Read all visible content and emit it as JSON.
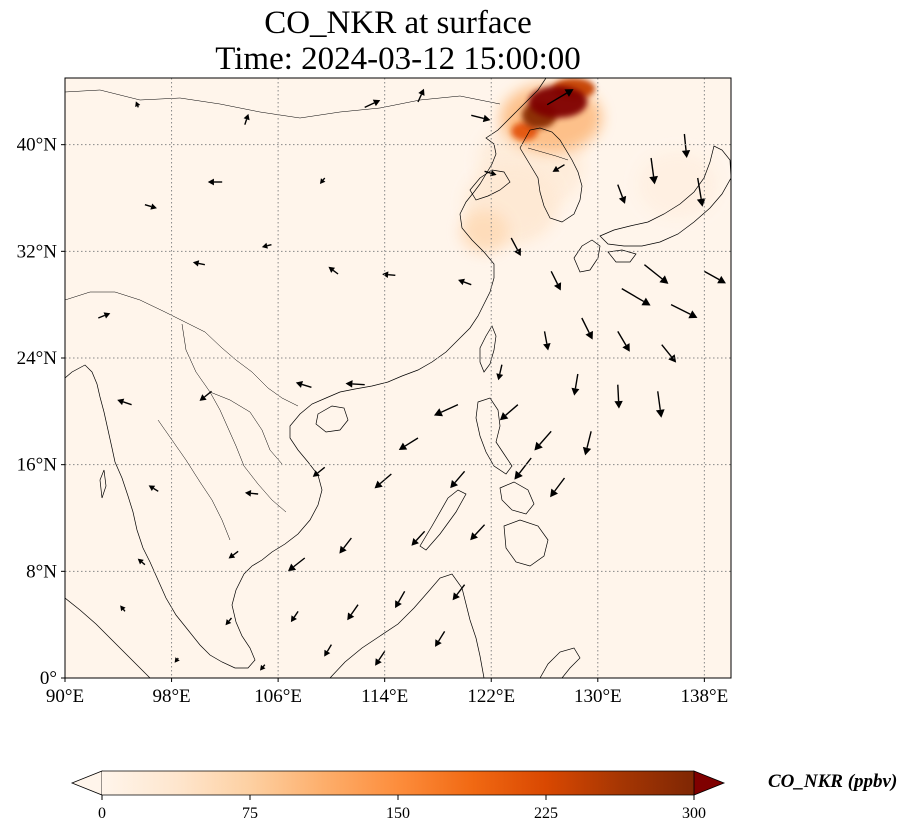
{
  "title": {
    "line1": "CO_NKR at surface",
    "line2": "Time: 2024-03-12 15:00:00"
  },
  "map": {
    "variable": "CO_NKR",
    "level": "surface",
    "lon_range": [
      90,
      140
    ],
    "lat_range": [
      0,
      45
    ],
    "lon_ticks": [
      {
        "value": 90,
        "label": "90°E"
      },
      {
        "value": 98,
        "label": "98°E"
      },
      {
        "value": 106,
        "label": "106°E"
      },
      {
        "value": 114,
        "label": "114°E"
      },
      {
        "value": 122,
        "label": "122°E"
      },
      {
        "value": 130,
        "label": "130°E"
      },
      {
        "value": 138,
        "label": "138°E"
      }
    ],
    "lat_ticks": [
      {
        "value": 0,
        "label": "0°"
      },
      {
        "value": 8,
        "label": "8°N"
      },
      {
        "value": 16,
        "label": "16°N"
      },
      {
        "value": 24,
        "label": "24°N"
      },
      {
        "value": 32,
        "label": "32°N"
      },
      {
        "value": 40,
        "label": "40°N"
      }
    ],
    "gridlines": true,
    "background_color": "#fff5eb",
    "coastline_color": "#000000",
    "plumes": [
      {
        "lon": 127.0,
        "lat": 43.2,
        "rx": 2.2,
        "ry": 1.2,
        "value": 300
      },
      {
        "lon": 125.6,
        "lat": 42.2,
        "rx": 1.3,
        "ry": 1.0,
        "value": 290
      },
      {
        "lon": 128.2,
        "lat": 44.2,
        "rx": 1.6,
        "ry": 0.8,
        "value": 240
      },
      {
        "lon": 124.5,
        "lat": 41.0,
        "rx": 1.0,
        "ry": 0.7,
        "value": 210
      },
      {
        "lon": 126.5,
        "lat": 42.0,
        "rx": 3.8,
        "ry": 2.6,
        "value": 95
      },
      {
        "lon": 121.5,
        "lat": 33.5,
        "rx": 1.8,
        "ry": 1.6,
        "value": 55
      },
      {
        "lon": 123.5,
        "lat": 35.5,
        "rx": 3.5,
        "ry": 3.0,
        "value": 30
      },
      {
        "lon": 125.0,
        "lat": 38.5,
        "rx": 4.0,
        "ry": 3.5,
        "value": 22
      },
      {
        "lon": 136.0,
        "lat": 37.0,
        "rx": 3.0,
        "ry": 2.5,
        "value": 12
      }
    ],
    "wind_vectors": [
      [
        126.2,
        43.0,
        2.2,
        1.3
      ],
      [
        120.5,
        42.2,
        1.6,
        -0.4
      ],
      [
        112.5,
        42.8,
        1.3,
        0.6
      ],
      [
        116.5,
        43.2,
        0.5,
        1.1
      ],
      [
        103.5,
        41.5,
        0.3,
        0.9
      ],
      [
        95.5,
        42.8,
        -0.2,
        0.5
      ],
      [
        136.5,
        40.8,
        0.2,
        -2.0
      ],
      [
        134.0,
        39.0,
        0.3,
        -2.2
      ],
      [
        137.5,
        37.5,
        0.4,
        -2.4
      ],
      [
        131.5,
        37.0,
        0.6,
        -1.6
      ],
      [
        127.5,
        38.5,
        -1.0,
        -0.6
      ],
      [
        121.5,
        38.0,
        1.0,
        -0.3
      ],
      [
        109.5,
        37.5,
        -0.4,
        -0.5
      ],
      [
        101.8,
        37.2,
        -1.2,
        0.0
      ],
      [
        96.0,
        35.5,
        1.0,
        -0.3
      ],
      [
        133.5,
        31.0,
        2.0,
        -1.6
      ],
      [
        138.0,
        30.5,
        1.8,
        -1.0
      ],
      [
        131.8,
        29.2,
        2.4,
        -1.4
      ],
      [
        135.5,
        28.0,
        2.2,
        -1.1
      ],
      [
        126.5,
        30.5,
        0.8,
        -1.6
      ],
      [
        123.5,
        33.0,
        0.8,
        -1.5
      ],
      [
        120.5,
        29.5,
        -1.1,
        0.4
      ],
      [
        114.8,
        30.2,
        -1.1,
        0.1
      ],
      [
        110.5,
        30.3,
        -0.8,
        0.6
      ],
      [
        105.5,
        32.5,
        -0.8,
        -0.2
      ],
      [
        100.5,
        31.0,
        -1.0,
        0.2
      ],
      [
        92.5,
        27.0,
        1.0,
        0.4
      ],
      [
        128.8,
        27.0,
        0.9,
        -1.8
      ],
      [
        131.5,
        26.0,
        1.0,
        -1.7
      ],
      [
        134.8,
        25.0,
        1.2,
        -1.5
      ],
      [
        126.0,
        26.0,
        0.3,
        -1.6
      ],
      [
        122.8,
        23.5,
        -0.3,
        -1.3
      ],
      [
        128.5,
        22.8,
        -0.3,
        -1.8
      ],
      [
        131.5,
        22.0,
        0.1,
        -2.0
      ],
      [
        134.5,
        21.5,
        0.3,
        -2.2
      ],
      [
        124.0,
        20.5,
        -1.5,
        -1.3
      ],
      [
        126.5,
        18.5,
        -1.4,
        -1.6
      ],
      [
        129.5,
        18.5,
        -0.5,
        -2.0
      ],
      [
        119.5,
        20.5,
        -2.0,
        -0.9
      ],
      [
        116.5,
        18.0,
        -1.6,
        -1.0
      ],
      [
        112.5,
        22.0,
        -1.6,
        0.1
      ],
      [
        108.5,
        21.8,
        -1.3,
        0.4
      ],
      [
        101.0,
        21.5,
        -1.0,
        -0.8
      ],
      [
        95.0,
        20.5,
        -1.2,
        0.4
      ],
      [
        125.0,
        16.5,
        -1.4,
        -1.8
      ],
      [
        127.5,
        15.0,
        -1.2,
        -1.6
      ],
      [
        120.0,
        15.5,
        -1.2,
        -1.4
      ],
      [
        114.5,
        15.3,
        -1.4,
        -1.2
      ],
      [
        109.5,
        15.8,
        -1.0,
        -0.8
      ],
      [
        104.5,
        13.8,
        -1.1,
        0.1
      ],
      [
        97.0,
        14.0,
        -0.8,
        0.5
      ],
      [
        121.5,
        11.5,
        -1.2,
        -1.3
      ],
      [
        117.0,
        11.0,
        -1.1,
        -1.2
      ],
      [
        111.5,
        10.5,
        -1.0,
        -1.3
      ],
      [
        108.0,
        9.0,
        -1.4,
        -1.1
      ],
      [
        103.0,
        9.5,
        -0.8,
        -0.6
      ],
      [
        96.0,
        8.5,
        -0.6,
        0.5
      ],
      [
        120.0,
        7.0,
        -1.0,
        -1.3
      ],
      [
        115.5,
        6.5,
        -0.8,
        -1.4
      ],
      [
        112.0,
        5.5,
        -0.9,
        -1.3
      ],
      [
        107.5,
        5.0,
        -0.6,
        -0.9
      ],
      [
        102.5,
        4.5,
        -0.5,
        -0.6
      ],
      [
        94.5,
        5.0,
        -0.4,
        0.5
      ],
      [
        118.5,
        3.5,
        -0.8,
        -1.3
      ],
      [
        114.0,
        2.0,
        -0.8,
        -1.2
      ],
      [
        110.0,
        2.5,
        -0.6,
        -1.0
      ],
      [
        105.0,
        1.0,
        -0.4,
        -0.5
      ],
      [
        98.5,
        1.5,
        -0.3,
        -0.4
      ]
    ]
  },
  "colorbar": {
    "label": "CO_NKR (ppbv)",
    "min": 0,
    "max": 300,
    "extend": "both",
    "ticks": [
      {
        "value": 0,
        "label": "0"
      },
      {
        "value": 75,
        "label": "75"
      },
      {
        "value": 150,
        "label": "150"
      },
      {
        "value": 225,
        "label": "225"
      },
      {
        "value": 300,
        "label": "300"
      }
    ],
    "colormap": [
      "#fff5eb",
      "#fee6ce",
      "#fdd0a2",
      "#fdae6b",
      "#fd8d3c",
      "#f16913",
      "#d94801",
      "#a63603",
      "#7f2704"
    ],
    "under_color": "#fff5eb",
    "over_color": "#7f0000"
  }
}
